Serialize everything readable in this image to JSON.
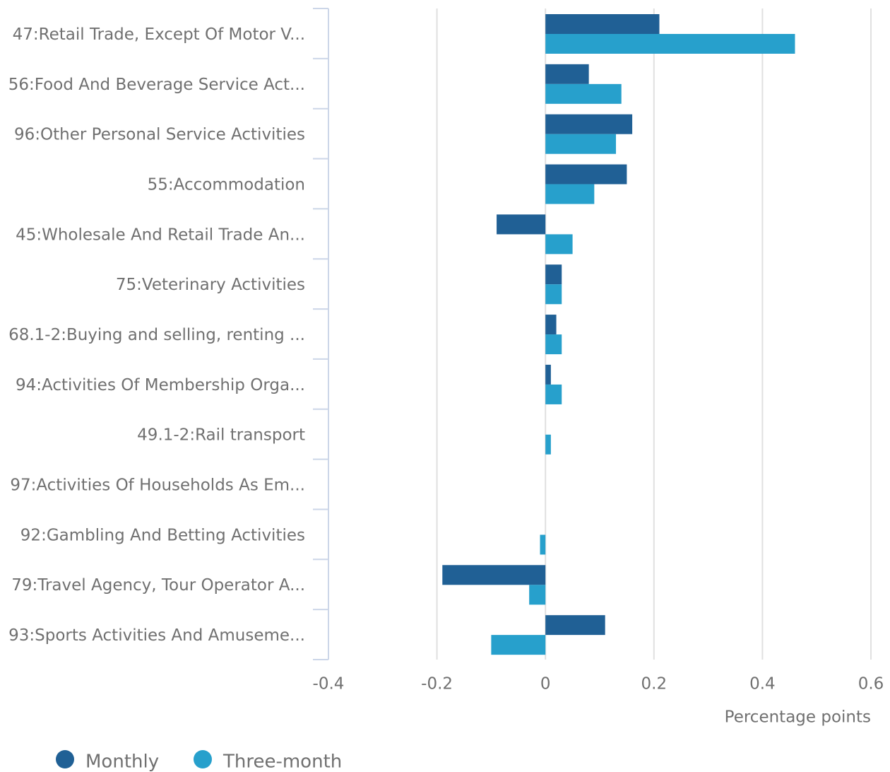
{
  "chart_data": {
    "type": "hbar",
    "categories": [
      "47:Retail Trade, Except Of Motor V...",
      "56:Food And Beverage Service Act...",
      "96:Other Personal Service Activities",
      "55:Accommodation",
      "45:Wholesale And Retail Trade An...",
      "75:Veterinary Activities",
      "68.1-2:Buying and selling, renting ...",
      "94:Activities Of Membership Orga...",
      "49.1-2:Rail transport",
      "97:Activities Of Households As Em...",
      "92:Gambling And Betting Activities",
      "79:Travel Agency, Tour Operator A...",
      "93:Sports Activities And Amuseme..."
    ],
    "series": [
      {
        "name": "Monthly",
        "color": "#206095",
        "values": [
          0.21,
          0.08,
          0.16,
          0.15,
          -0.09,
          0.03,
          0.02,
          0.01,
          0,
          0,
          0,
          -0.19,
          0.11
        ]
      },
      {
        "name": "Three-month",
        "color": "#27a0cc",
        "values": [
          0.46,
          0.14,
          0.13,
          0.09,
          0.05,
          0.03,
          0.03,
          0.03,
          0.01,
          0,
          -0.01,
          -0.03,
          -0.1
        ]
      }
    ],
    "xlim": [
      -0.4,
      0.6
    ],
    "xticks": [
      -0.4,
      -0.2,
      0,
      0.2,
      0.4,
      0.6
    ],
    "x_label": "Percentage points",
    "grid": true,
    "legend": "bottom-left"
  }
}
